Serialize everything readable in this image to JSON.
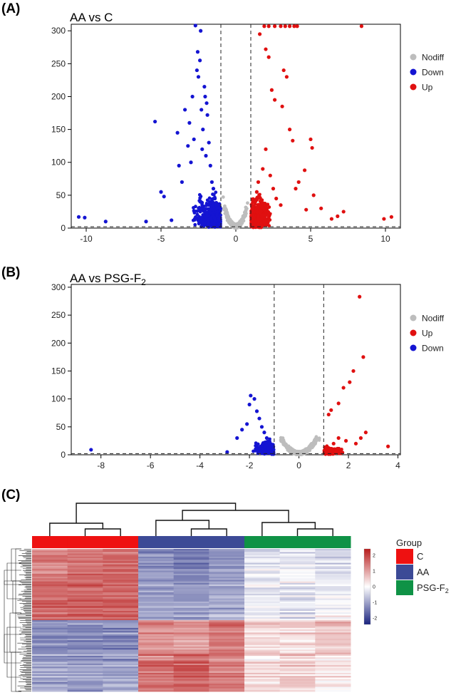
{
  "panels": [
    {
      "label": "(A)",
      "title": "AA vs C"
    },
    {
      "label": "(B)",
      "title_main": "AA vs PSG-F",
      "title_sub": "2"
    },
    {
      "label": "(C)"
    }
  ],
  "chart_data": [
    {
      "type": "scatter",
      "title": "AA vs C",
      "xlim": [
        -11,
        11
      ],
      "ylim": [
        0,
        310
      ],
      "xticks": [
        -10,
        -5,
        0,
        5,
        10
      ],
      "yticks": [
        0,
        50,
        100,
        150,
        200,
        250,
        300
      ],
      "vlines": [
        -1,
        1
      ],
      "hline": 2,
      "legend": [
        "Nodiff",
        "Down",
        "Up"
      ],
      "legend_position": "right",
      "colors": {
        "Nodiff": "#bdbdbd",
        "Down": "#1414d2",
        "Up": "#e01010"
      },
      "series": [
        {
          "name": "Down",
          "points": [
            [
              -10.5,
              17
            ],
            [
              -10.1,
              16
            ],
            [
              -8.7,
              10
            ],
            [
              -6,
              10
            ],
            [
              -5.4,
              162
            ],
            [
              -5,
              55
            ],
            [
              -4.8,
              48
            ],
            [
              -4.3,
              12
            ],
            [
              -3.9,
              145
            ],
            [
              -3.8,
              95
            ],
            [
              -3.6,
              70
            ],
            [
              -3.4,
              180
            ],
            [
              -3.2,
              125
            ],
            [
              -3.1,
              160
            ],
            [
              -3,
              100
            ],
            [
              -2.9,
              200
            ],
            [
              -2.8,
              135
            ],
            [
              -2.7,
              308
            ],
            [
              -2.6,
              240
            ],
            [
              -2.55,
              268
            ],
            [
              -2.5,
              230
            ],
            [
              -2.4,
              255
            ],
            [
              -2.35,
              300
            ],
            [
              -2.3,
              180
            ],
            [
              -2.25,
              120
            ],
            [
              -2.2,
              150
            ],
            [
              -2.1,
              215
            ],
            [
              -2.05,
              200
            ],
            [
              -2,
              110
            ],
            [
              -1.95,
              190
            ],
            [
              -1.9,
              172
            ],
            [
              -1.8,
              130
            ],
            [
              -1.7,
              95
            ],
            [
              -1.6,
              70
            ],
            [
              -1.5,
              60
            ],
            [
              -1.4,
              45
            ],
            [
              -1.3,
              35
            ],
            [
              -1.2,
              25
            ],
            [
              -1.1,
              15
            ]
          ]
        },
        {
          "name": "Up",
          "points": [
            [
              1.9,
              307
            ],
            [
              2.2,
              307
            ],
            [
              2.6,
              307
            ],
            [
              3,
              307
            ],
            [
              3.3,
              307
            ],
            [
              3.6,
              307
            ],
            [
              3.9,
              307
            ],
            [
              4.1,
              307
            ],
            [
              8.4,
              307
            ],
            [
              1.6,
              295
            ],
            [
              2,
              272
            ],
            [
              2.2,
              260
            ],
            [
              3.2,
              240
            ],
            [
              3.4,
              230
            ],
            [
              2.4,
              210
            ],
            [
              2.6,
              195
            ],
            [
              3.1,
              185
            ],
            [
              3.6,
              150
            ],
            [
              3.8,
              133
            ],
            [
              5,
              135
            ],
            [
              5.1,
              122
            ],
            [
              4.6,
              88
            ],
            [
              4.2,
              70
            ],
            [
              4,
              60
            ],
            [
              5.2,
              50
            ],
            [
              4.7,
              28
            ],
            [
              5.7,
              30
            ],
            [
              6.4,
              14
            ],
            [
              6.8,
              18
            ],
            [
              7.2,
              25
            ],
            [
              9.9,
              14
            ],
            [
              10.4,
              17
            ],
            [
              2,
              120
            ],
            [
              1.8,
              90
            ],
            [
              1.5,
              70
            ],
            [
              1.4,
              55
            ],
            [
              1.3,
              40
            ],
            [
              1.2,
              25
            ],
            [
              1.1,
              12
            ],
            [
              2.3,
              80
            ],
            [
              2.5,
              60
            ],
            [
              2.7,
              45
            ],
            [
              3,
              35
            ]
          ]
        }
      ]
    },
    {
      "type": "scatter",
      "title": "AA vs PSG-F2",
      "xlim": [
        -9.2,
        4.1
      ],
      "ylim": [
        0,
        305
      ],
      "xticks": [
        -8,
        -6,
        -4,
        -2,
        0,
        2,
        4
      ],
      "yticks": [
        0,
        50,
        100,
        150,
        200,
        250,
        300
      ],
      "vlines": [
        -1,
        1
      ],
      "hline": 2,
      "legend": [
        "Nodiff",
        "Up",
        "Down"
      ],
      "legend_position": "right",
      "colors": {
        "Nodiff": "#bdbdbd",
        "Down": "#1414d2",
        "Up": "#e01010"
      },
      "series": [
        {
          "name": "Down",
          "points": [
            [
              -8.4,
              9
            ],
            [
              -2.9,
              5
            ],
            [
              -2.5,
              30
            ],
            [
              -2.3,
              45
            ],
            [
              -2.1,
              55
            ],
            [
              -2,
              90
            ],
            [
              -1.95,
              106
            ],
            [
              -1.8,
              100
            ],
            [
              -1.7,
              78
            ],
            [
              -1.6,
              65
            ],
            [
              -1.5,
              50
            ],
            [
              -1.4,
              40
            ],
            [
              -1.3,
              30
            ],
            [
              -1.2,
              20
            ],
            [
              -1.1,
              10
            ]
          ]
        },
        {
          "name": "Up",
          "points": [
            [
              2.45,
              283
            ],
            [
              2.6,
              175
            ],
            [
              2.2,
              150
            ],
            [
              2.05,
              130
            ],
            [
              1.8,
              120
            ],
            [
              1.6,
              92
            ],
            [
              1.3,
              80
            ],
            [
              1.2,
              72
            ],
            [
              2.7,
              40
            ],
            [
              3.6,
              15
            ],
            [
              2.5,
              30
            ],
            [
              2.3,
              20
            ],
            [
              1.9,
              25
            ],
            [
              1.6,
              30
            ],
            [
              1.4,
              20
            ],
            [
              1.1,
              10
            ]
          ]
        }
      ]
    },
    {
      "type": "heatmap",
      "legend_title": "Group",
      "groups": [
        {
          "name": "C",
          "color": "#ee1111"
        },
        {
          "name": "AA",
          "color": "#3c4a96"
        },
        {
          "name": "PSG-F",
          "sub": "2",
          "color": "#0f9246"
        }
      ],
      "colorbar": {
        "ticks": [
          2,
          1,
          0,
          -1,
          -2
        ],
        "low": "#1a237e",
        "mid": "#ffffff",
        "high": "#b71c1c"
      },
      "column_groups": [
        "C",
        "C",
        "C",
        "AA",
        "AA",
        "AA",
        "PSG-F2",
        "PSG-F2",
        "PSG-F2"
      ],
      "block_means": [
        [
          1.3,
          1.4,
          1.5,
          -1.2,
          -1.3,
          -1.1,
          -0.3,
          -0.2,
          -0.4
        ],
        [
          1.6,
          1.7,
          1.6,
          -1.0,
          -1.1,
          -0.9,
          -0.2,
          -0.3,
          -0.1
        ],
        [
          -1.2,
          -1.3,
          -1.2,
          1.2,
          1.1,
          1.4,
          0.5,
          0.4,
          0.6
        ],
        [
          -1.0,
          -1.1,
          -1.0,
          1.5,
          1.6,
          1.3,
          0.3,
          0.5,
          0.2
        ]
      ]
    }
  ]
}
